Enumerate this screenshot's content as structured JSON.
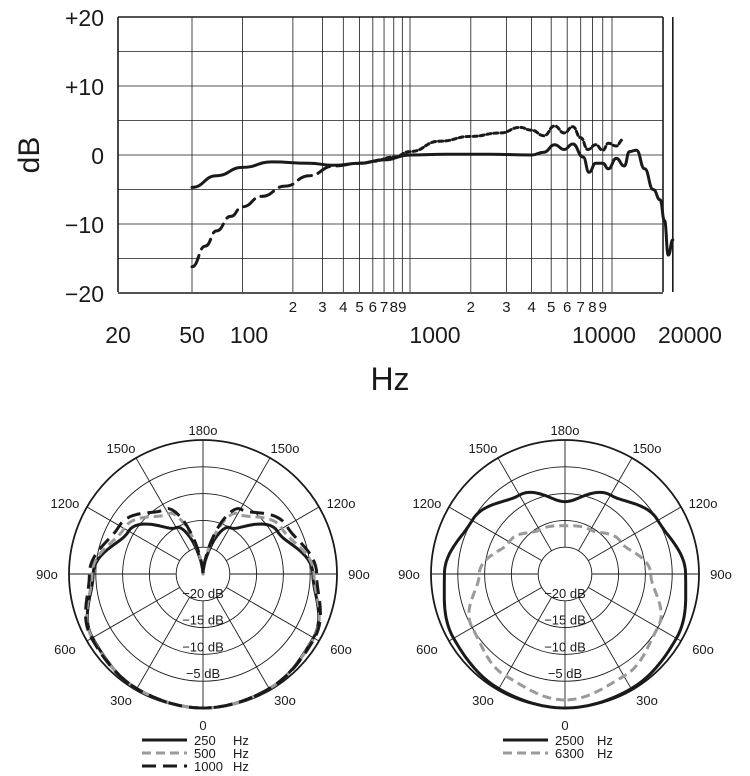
{
  "chart_data": [
    {
      "type": "line",
      "xscale": "log",
      "xlim": [
        50,
        20000
      ],
      "ylim": [
        -20,
        20
      ],
      "ylabel": "dB",
      "xlabel": "Hz",
      "yticks": [
        "+20",
        "+10",
        "0",
        "−10",
        "−20"
      ],
      "xtick_labels_main": [
        "20",
        "50",
        "100",
        "1000",
        "10000",
        "20000"
      ],
      "xtick_labels_minor": [
        "2",
        "3",
        "4",
        "5",
        "6",
        "7",
        "8",
        "9",
        "2",
        "3",
        "4",
        "5",
        "6",
        "7",
        "8",
        "9"
      ],
      "grid": true,
      "series": [
        {
          "style": "solid",
          "points": [
            [
              50,
              -4.7
            ],
            [
              70,
              -3
            ],
            [
              100,
              -1.8
            ],
            [
              150,
              -1
            ],
            [
              250,
              -1.2
            ],
            [
              350,
              -1.5
            ],
            [
              500,
              -1.2
            ],
            [
              700,
              -0.7
            ],
            [
              1000,
              0
            ],
            [
              1500,
              0.1
            ],
            [
              2500,
              0.1
            ],
            [
              4000,
              0
            ],
            [
              4600,
              0.4
            ],
            [
              5200,
              1.5
            ],
            [
              5800,
              0.8
            ],
            [
              6400,
              1.6
            ],
            [
              7200,
              -0.3
            ],
            [
              7700,
              -2.5
            ],
            [
              8300,
              -1.2
            ],
            [
              9000,
              -1.2
            ],
            [
              9600,
              -2
            ],
            [
              10500,
              -0.5
            ],
            [
              11500,
              -1.6
            ],
            [
              12200,
              0.5
            ],
            [
              13200,
              0.7
            ],
            [
              14500,
              -2
            ],
            [
              16000,
              -5
            ],
            [
              17300,
              -6.5
            ],
            [
              18200,
              -9.5
            ],
            [
              19000,
              -14.5
            ],
            [
              20000,
              -12.3
            ]
          ]
        },
        {
          "style": "short-dash",
          "points": [
            [
              600,
              -0.9
            ],
            [
              800,
              -0.3
            ],
            [
              1000,
              0.5
            ],
            [
              1400,
              2
            ],
            [
              2000,
              2.7
            ],
            [
              2800,
              3.2
            ],
            [
              3500,
              4
            ],
            [
              4000,
              3.6
            ],
            [
              4600,
              2.8
            ],
            [
              5200,
              4.2
            ],
            [
              5800,
              3.2
            ],
            [
              6400,
              4.1
            ],
            [
              7000,
              2.5
            ],
            [
              7600,
              0.8
            ],
            [
              8300,
              1.5
            ],
            [
              9000,
              0.7
            ],
            [
              9600,
              1.7
            ],
            [
              10500,
              1.3
            ],
            [
              11300,
              2.2
            ]
          ]
        },
        {
          "style": "long-dash",
          "points": [
            [
              50,
              -16.2
            ],
            [
              60,
              -13.2
            ],
            [
              70,
              -11
            ],
            [
              85,
              -8.9
            ],
            [
              100,
              -7.5
            ],
            [
              130,
              -6
            ],
            [
              180,
              -4.5
            ],
            [
              250,
              -3
            ],
            [
              350,
              -1.6
            ],
            [
              500,
              -1.2
            ],
            [
              700,
              -0.7
            ],
            [
              1000,
              0
            ]
          ]
        }
      ]
    },
    {
      "type": "polar",
      "angle_labels": [
        "0",
        "30o",
        "60o",
        "90o",
        "120o",
        "150o",
        "180o",
        "150o",
        "120o",
        "90o",
        "60o",
        "30o"
      ],
      "radial_labels": [
        "−20 dB",
        "−15 dB",
        "−10 dB",
        "−5 dB"
      ],
      "rlim": [
        -25,
        0
      ],
      "series": [
        {
          "name": "250 Hz",
          "style": "solid",
          "profile": [
            [
              0,
              0
            ],
            [
              30,
              -0.3
            ],
            [
              60,
              -1.2
            ],
            [
              90,
              -4.5
            ],
            [
              120,
              -9
            ],
            [
              150,
              -15
            ],
            [
              180,
              -25
            ]
          ]
        },
        {
          "name": "500 Hz",
          "style": "dashed-gray",
          "profile": [
            [
              0,
              0
            ],
            [
              30,
              -0.3
            ],
            [
              60,
              -1.1
            ],
            [
              90,
              -4.3
            ],
            [
              120,
              -8
            ],
            [
              150,
              -12
            ],
            [
              180,
              -25
            ]
          ]
        },
        {
          "name": "1000 Hz",
          "style": "long-dash",
          "profile": [
            [
              0,
              0
            ],
            [
              30,
              -0.3
            ],
            [
              60,
              -1.0
            ],
            [
              90,
              -3.8
            ],
            [
              120,
              -7
            ],
            [
              150,
              -11
            ],
            [
              180,
              -25
            ]
          ]
        }
      ]
    },
    {
      "type": "polar",
      "angle_labels": [
        "0",
        "30o",
        "60o",
        "90o",
        "120o",
        "150o",
        "180o",
        "150o",
        "120o",
        "90o",
        "60o",
        "30o"
      ],
      "radial_labels": [
        "−20 dB",
        "−15 dB",
        "−10 dB",
        "−5 dB"
      ],
      "rlim": [
        -25,
        0
      ],
      "series": [
        {
          "name": "2500 Hz",
          "style": "solid",
          "profile": [
            [
              0,
              0
            ],
            [
              30,
              -0.3
            ],
            [
              60,
              -1.0
            ],
            [
              90,
              -2.5
            ],
            [
              120,
              -5
            ],
            [
              150,
              -8
            ],
            [
              180,
              -11.5
            ]
          ]
        },
        {
          "name": "6300 Hz",
          "style": "dashed-gray",
          "profile": [
            [
              0,
              -1.5
            ],
            [
              30,
              -3
            ],
            [
              60,
              -5
            ],
            [
              90,
              -9
            ],
            [
              120,
              -13
            ],
            [
              150,
              -15.5
            ],
            [
              180,
              -16
            ]
          ]
        }
      ]
    }
  ],
  "legends": {
    "left": [
      {
        "value": "250",
        "unit": "Hz"
      },
      {
        "value": "500",
        "unit": "Hz"
      },
      {
        "value": "1000",
        "unit": "Hz"
      }
    ],
    "right": [
      {
        "value": "2500",
        "unit": "Hz"
      },
      {
        "value": "6300",
        "unit": "Hz"
      }
    ]
  },
  "colors": {
    "ink": "#1a1a1a",
    "gray_series": "#9a9a9a",
    "grid": "#1a1a1a"
  }
}
